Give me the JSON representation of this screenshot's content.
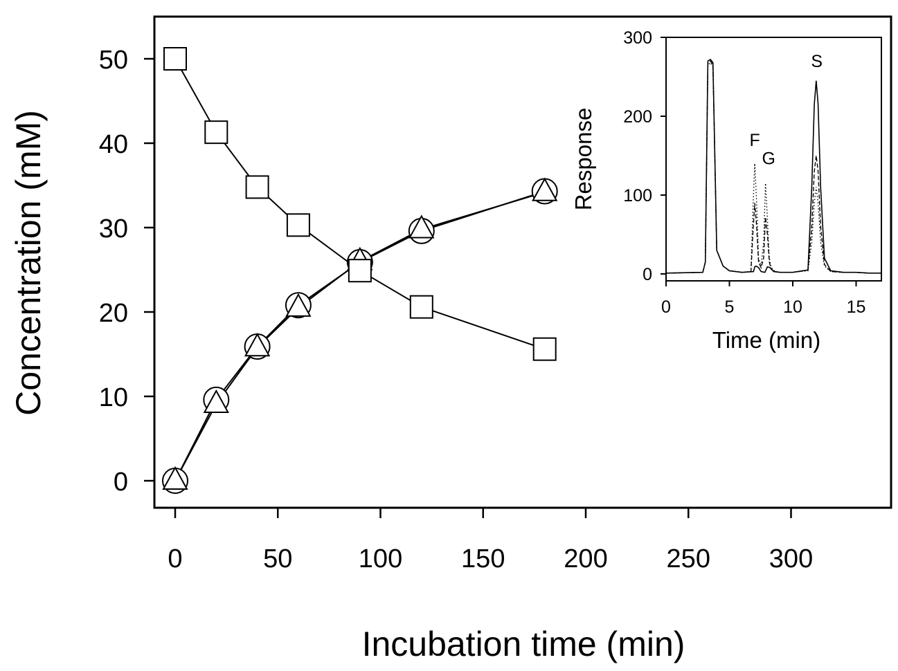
{
  "chart_data": [
    {
      "type": "line",
      "title": "",
      "xlabel": "Incubation time (min)",
      "ylabel": "Concentration (mM)",
      "xlim": [
        -10,
        350
      ],
      "ylim": [
        -3,
        55
      ],
      "xticks": [
        0,
        50,
        100,
        150,
        200,
        250,
        300
      ],
      "yticks": [
        0,
        10,
        20,
        30,
        40,
        50
      ],
      "grid": false,
      "legend": "none",
      "x": [
        0,
        20,
        40,
        60,
        90,
        120,
        180
      ],
      "series": [
        {
          "name": "square",
          "marker": "square",
          "values": [
            50,
            41.3,
            34.8,
            30.3,
            24.9,
            20.6,
            15.6
          ]
        },
        {
          "name": "circle",
          "marker": "circle",
          "values": [
            0,
            9.6,
            15.9,
            20.8,
            25.9,
            29.6,
            34.3
          ]
        },
        {
          "name": "triangle",
          "marker": "triangle",
          "values": [
            0,
            9.1,
            15.8,
            20.5,
            26.0,
            29.8,
            34.2
          ]
        }
      ]
    },
    {
      "type": "line",
      "title": "",
      "xlabel": "Time (min)",
      "ylabel": "Response",
      "xlim": [
        0,
        17
      ],
      "ylim": [
        -10,
        300
      ],
      "xticks": [
        0,
        5,
        10,
        15
      ],
      "yticks": [
        0,
        100,
        200,
        300
      ],
      "grid": false,
      "legend": "none",
      "annotations": [
        {
          "text": "F",
          "x": 7.0,
          "y": 170
        },
        {
          "text": "G",
          "x": 8.1,
          "y": 147
        },
        {
          "text": "S",
          "x": 11.9,
          "y": 270
        }
      ],
      "series": [
        {
          "name": "solid",
          "style": "solid",
          "x": [
            0,
            2.9,
            3.1,
            3.3,
            3.5,
            3.7,
            4.0,
            4.5,
            5,
            6,
            6.9,
            7.0,
            7.1,
            7.3,
            7.5,
            7.8,
            8.0,
            8.2,
            8.5,
            9,
            10,
            11.2,
            11.5,
            11.7,
            11.85,
            12.0,
            12.2,
            12.5,
            13,
            14,
            15,
            16,
            17
          ],
          "y": [
            1,
            2,
            15,
            270,
            272,
            268,
            30,
            10,
            4,
            2,
            3,
            9,
            10,
            8,
            3,
            2,
            9,
            8,
            3,
            2,
            2,
            5,
            110,
            215,
            245,
            215,
            110,
            20,
            4,
            2,
            2,
            1,
            1
          ]
        },
        {
          "name": "dashed",
          "style": "dashed",
          "x": [
            0,
            2.9,
            3.1,
            3.3,
            3.5,
            3.7,
            4.0,
            4.5,
            5,
            6,
            6.7,
            6.85,
            7.0,
            7.15,
            7.3,
            7.5,
            7.7,
            7.85,
            8.0,
            8.15,
            8.3,
            8.6,
            9,
            10,
            11.2,
            11.5,
            11.7,
            11.85,
            12.0,
            12.2,
            12.5,
            13,
            14,
            15,
            16,
            17
          ],
          "y": [
            1,
            2,
            15,
            268,
            270,
            265,
            30,
            10,
            4,
            2,
            3,
            50,
            90,
            60,
            15,
            8,
            20,
            72,
            50,
            15,
            6,
            3,
            2,
            2,
            5,
            60,
            130,
            150,
            130,
            60,
            12,
            3,
            2,
            2,
            1,
            1
          ]
        },
        {
          "name": "dotted",
          "style": "dotted",
          "x": [
            0,
            2.9,
            3.1,
            3.3,
            3.5,
            3.7,
            4.0,
            4.5,
            5,
            6,
            6.7,
            6.85,
            7.0,
            7.15,
            7.3,
            7.5,
            7.7,
            7.85,
            8.0,
            8.15,
            8.3,
            8.6,
            9,
            10,
            11.2,
            11.5,
            11.7,
            11.85,
            12.0,
            12.2,
            12.5,
            13,
            14,
            15,
            16,
            17
          ],
          "y": [
            1,
            2,
            15,
            265,
            268,
            262,
            30,
            10,
            4,
            2,
            3,
            80,
            140,
            90,
            20,
            10,
            40,
            115,
            70,
            20,
            8,
            3,
            2,
            2,
            4,
            40,
            90,
            110,
            90,
            40,
            10,
            3,
            2,
            2,
            1,
            1
          ]
        }
      ]
    }
  ]
}
